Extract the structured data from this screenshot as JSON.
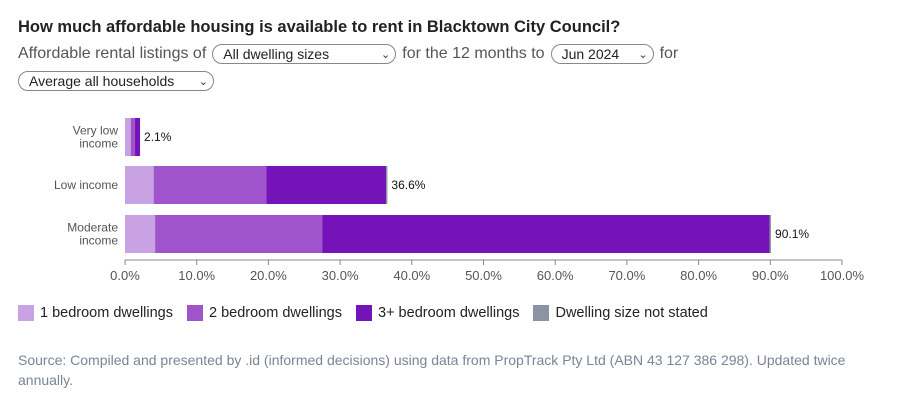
{
  "title": "How much affordable housing is available to rent in Blacktown City Council?",
  "subtitle": {
    "prefix": "Affordable rental listings of",
    "dwelling_select": "All dwelling sizes",
    "middle": "for the 12 months to",
    "period_select": "Jun 2024",
    "suffix": "for",
    "household_select": "Average all households"
  },
  "colors": {
    "one_bedroom": "#c9a2e3",
    "two_bedroom": "#a054cc",
    "three_plus_bedroom": "#7413b8",
    "not_stated": "#8c94a4",
    "axis": "#888888",
    "grid_text": "#555555"
  },
  "chart_data": {
    "type": "bar",
    "orientation": "horizontal",
    "stacked": true,
    "categories": [
      "Very low income",
      "Low income",
      "Moderate income"
    ],
    "category_label_lines": [
      [
        "Very low",
        "income"
      ],
      [
        "Low income"
      ],
      [
        "Moderate",
        "income"
      ]
    ],
    "series": [
      {
        "name": "1 bedroom dwellings",
        "values": [
          0.8,
          4.0,
          4.2
        ]
      },
      {
        "name": "2 bedroom dwellings",
        "values": [
          0.6,
          15.7,
          23.3
        ]
      },
      {
        "name": "3+ bedroom dwellings",
        "values": [
          0.7,
          16.7,
          62.4
        ]
      },
      {
        "name": "Dwelling size not stated",
        "values": [
          0.0,
          0.2,
          0.2
        ]
      }
    ],
    "totals": [
      "2.1%",
      "36.6%",
      "90.1%"
    ],
    "xlim": [
      0,
      100
    ],
    "x_ticks": [
      "0.0%",
      "10.0%",
      "20.0%",
      "30.0%",
      "40.0%",
      "50.0%",
      "60.0%",
      "70.0%",
      "80.0%",
      "90.0%",
      "100.0%"
    ],
    "legend_position": "bottom"
  },
  "source": "Source: Compiled and presented by .id (informed decisions) using data from PropTrack Pty Ltd (ABN 43 127 386 298). Updated twice annually."
}
